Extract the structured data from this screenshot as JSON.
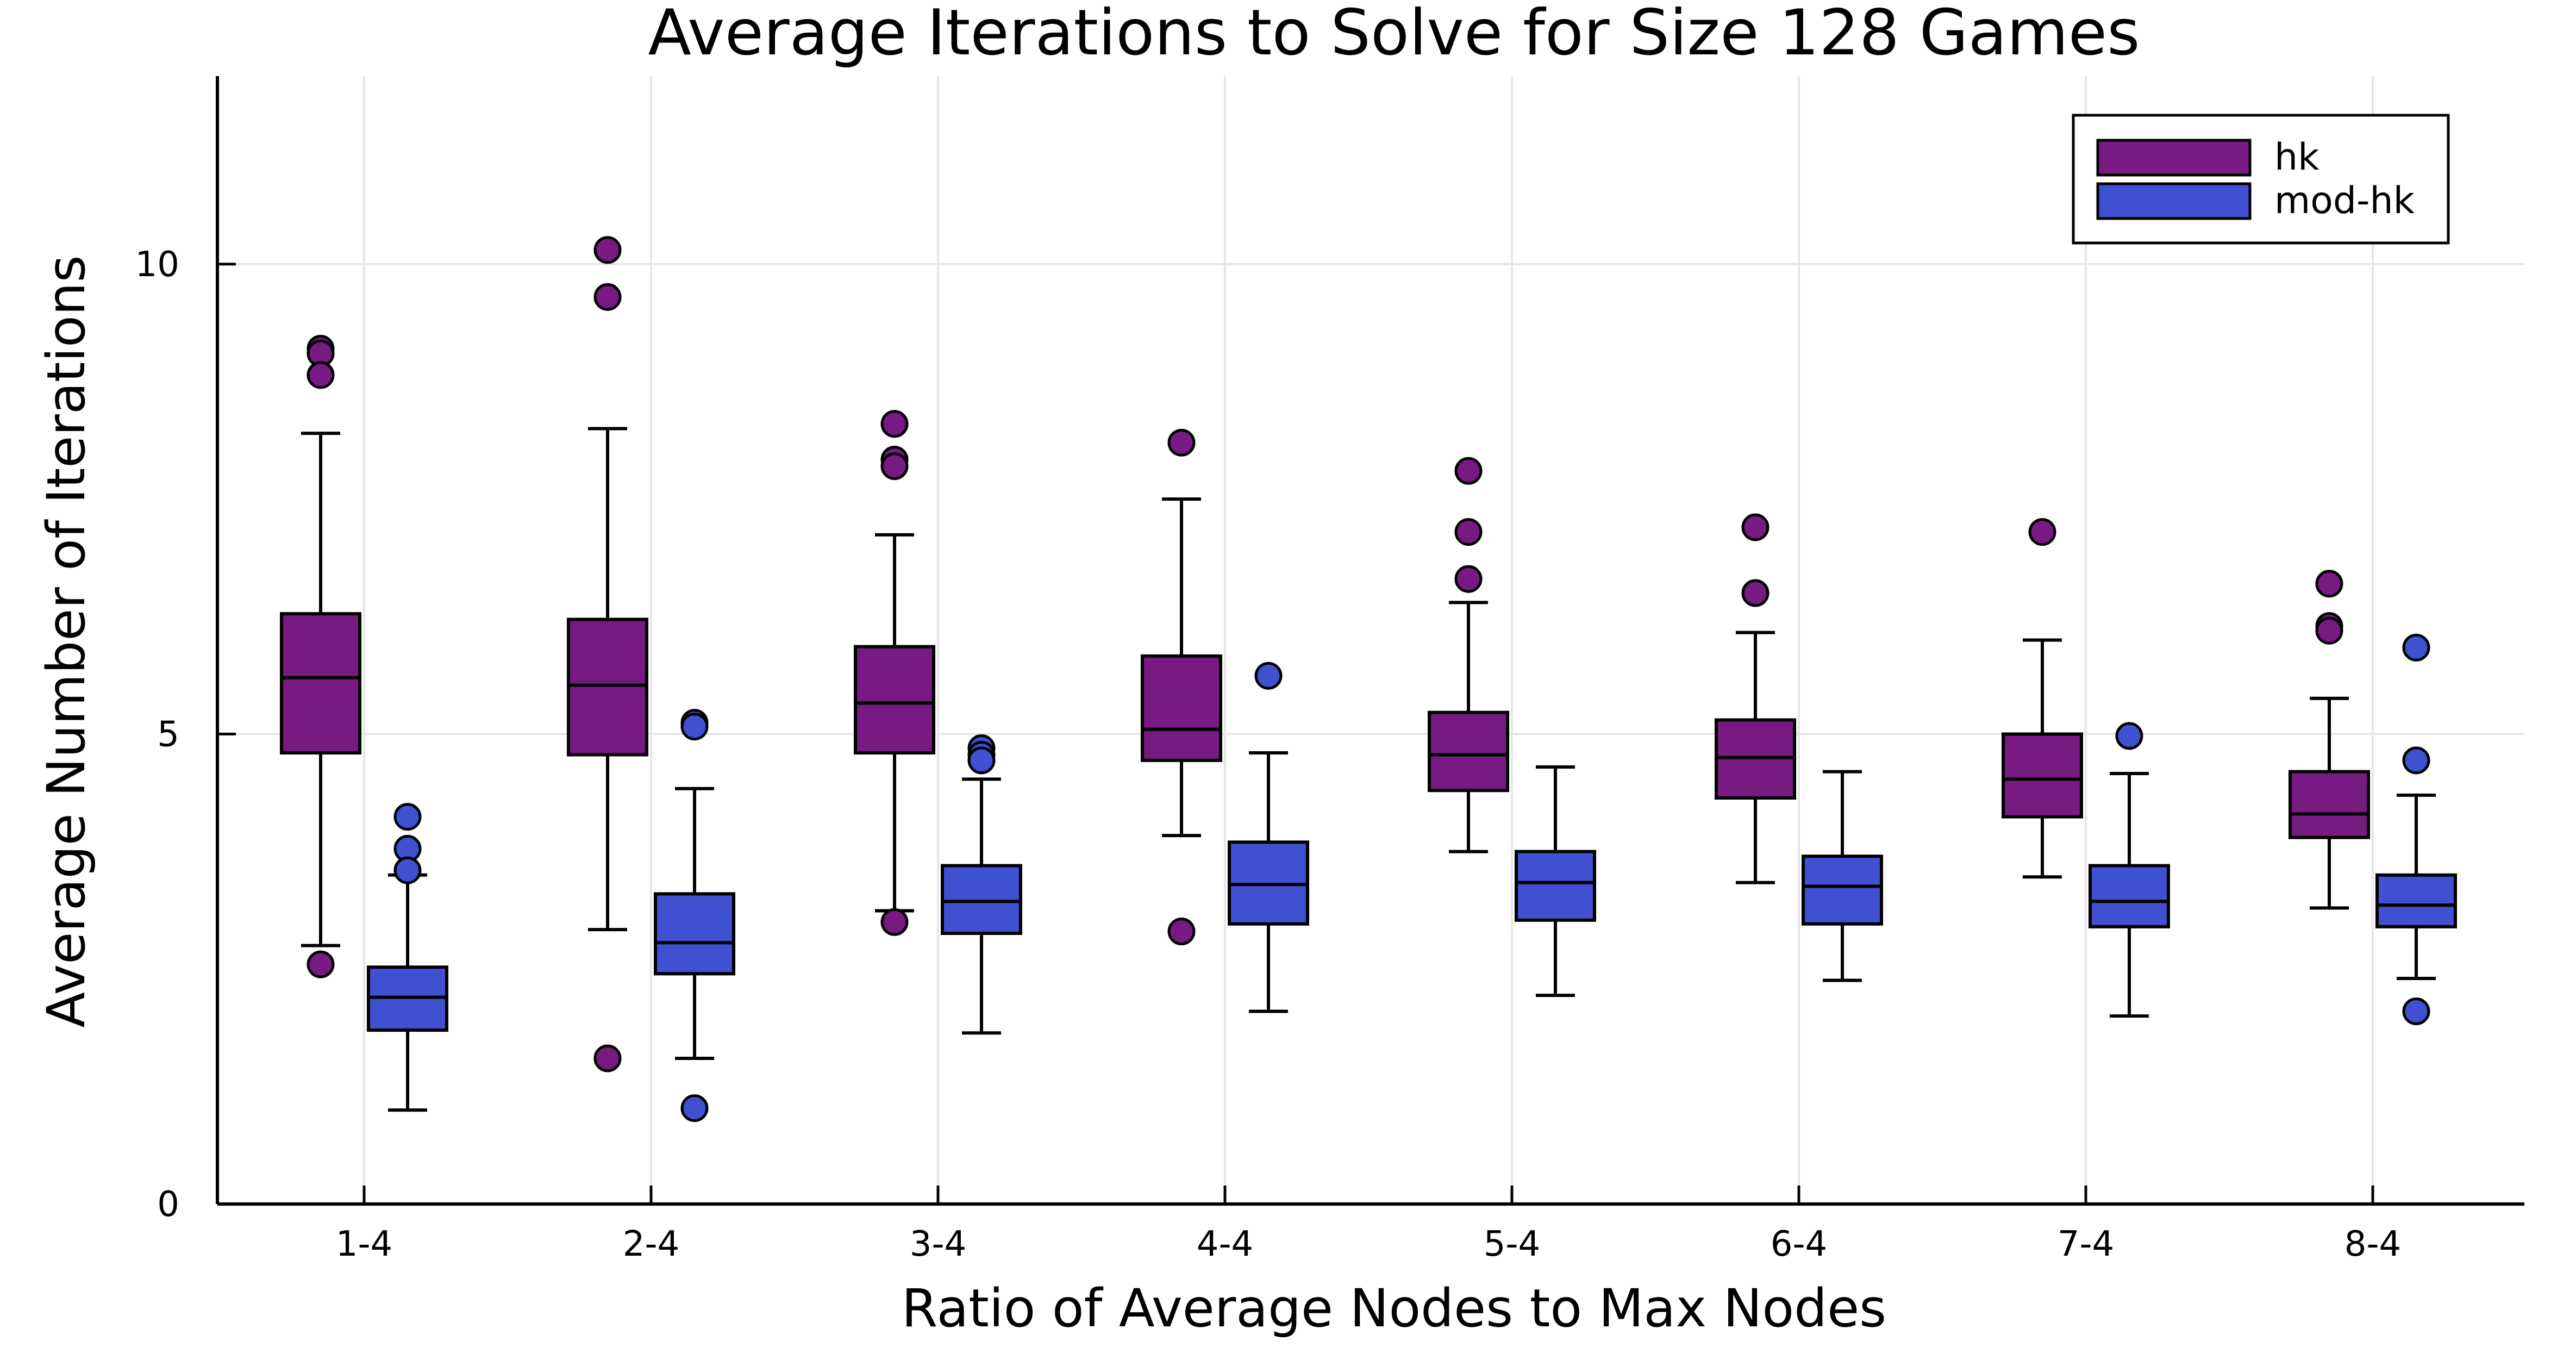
{
  "chart_data": {
    "type": "box",
    "title": "Average Iterations to Solve for Size 128 Games",
    "xlabel": "Ratio of Average Nodes to Max Nodes",
    "ylabel": "Average Number of Iterations",
    "categories": [
      "1-4",
      "2-4",
      "3-4",
      "4-4",
      "5-4",
      "6-4",
      "7-4",
      "8-4"
    ],
    "ylim": [
      0,
      12
    ],
    "yticks": [
      0,
      5,
      10
    ],
    "grid": true,
    "legend_position": "top-right",
    "series": [
      {
        "name": "hk",
        "color": "#771a82",
        "boxes": [
          {
            "whisker_low": 2.75,
            "q1": 4.8,
            "median": 5.6,
            "q3": 6.28,
            "whisker_high": 8.2,
            "outliers": [
              9.1,
              9.05,
              8.82,
              2.55
            ]
          },
          {
            "whisker_low": 2.92,
            "q1": 4.78,
            "median": 5.52,
            "q3": 6.22,
            "whisker_high": 8.25,
            "outliers": [
              10.15,
              9.65,
              1.55
            ]
          },
          {
            "whisker_low": 3.12,
            "q1": 4.8,
            "median": 5.33,
            "q3": 5.93,
            "whisker_high": 7.12,
            "outliers": [
              8.3,
              7.92,
              7.85,
              3.0
            ]
          },
          {
            "whisker_low": 3.92,
            "q1": 4.72,
            "median": 5.05,
            "q3": 5.83,
            "whisker_high": 7.5,
            "outliers": [
              8.1,
              2.9
            ]
          },
          {
            "whisker_low": 3.75,
            "q1": 4.4,
            "median": 4.78,
            "q3": 5.23,
            "whisker_high": 6.4,
            "outliers": [
              7.8,
              7.15,
              6.65
            ]
          },
          {
            "whisker_low": 3.42,
            "q1": 4.32,
            "median": 4.75,
            "q3": 5.15,
            "whisker_high": 6.08,
            "outliers": [
              7.2,
              6.5
            ]
          },
          {
            "whisker_low": 3.48,
            "q1": 4.12,
            "median": 4.52,
            "q3": 5.0,
            "whisker_high": 6.0,
            "outliers": [
              7.15
            ]
          },
          {
            "whisker_low": 3.15,
            "q1": 3.9,
            "median": 4.15,
            "q3": 4.6,
            "whisker_high": 5.38,
            "outliers": [
              6.6,
              6.15,
              6.1
            ]
          }
        ]
      },
      {
        "name": "mod-hk",
        "color": "#3f51d0",
        "boxes": [
          {
            "whisker_low": 1.0,
            "q1": 1.85,
            "median": 2.2,
            "q3": 2.52,
            "whisker_high": 3.5,
            "outliers": [
              4.12,
              3.78,
              3.55
            ]
          },
          {
            "whisker_low": 1.55,
            "q1": 2.45,
            "median": 2.78,
            "q3": 3.3,
            "whisker_high": 4.42,
            "outliers": [
              5.12,
              5.08,
              1.02
            ]
          },
          {
            "whisker_low": 1.82,
            "q1": 2.88,
            "median": 3.22,
            "q3": 3.6,
            "whisker_high": 4.52,
            "outliers": [
              4.85,
              4.78,
              4.72
            ]
          },
          {
            "whisker_low": 2.05,
            "q1": 2.98,
            "median": 3.4,
            "q3": 3.85,
            "whisker_high": 4.8,
            "outliers": [
              5.62
            ]
          },
          {
            "whisker_low": 2.22,
            "q1": 3.02,
            "median": 3.42,
            "q3": 3.75,
            "whisker_high": 4.65,
            "outliers": []
          },
          {
            "whisker_low": 2.38,
            "q1": 2.98,
            "median": 3.38,
            "q3": 3.7,
            "whisker_high": 4.6,
            "outliers": []
          },
          {
            "whisker_low": 2.0,
            "q1": 2.95,
            "median": 3.22,
            "q3": 3.6,
            "whisker_high": 4.58,
            "outliers": [
              4.98
            ]
          },
          {
            "whisker_low": 2.4,
            "q1": 2.95,
            "median": 3.18,
            "q3": 3.5,
            "whisker_high": 4.35,
            "outliers": [
              5.92,
              4.72,
              2.05
            ]
          }
        ]
      }
    ]
  }
}
